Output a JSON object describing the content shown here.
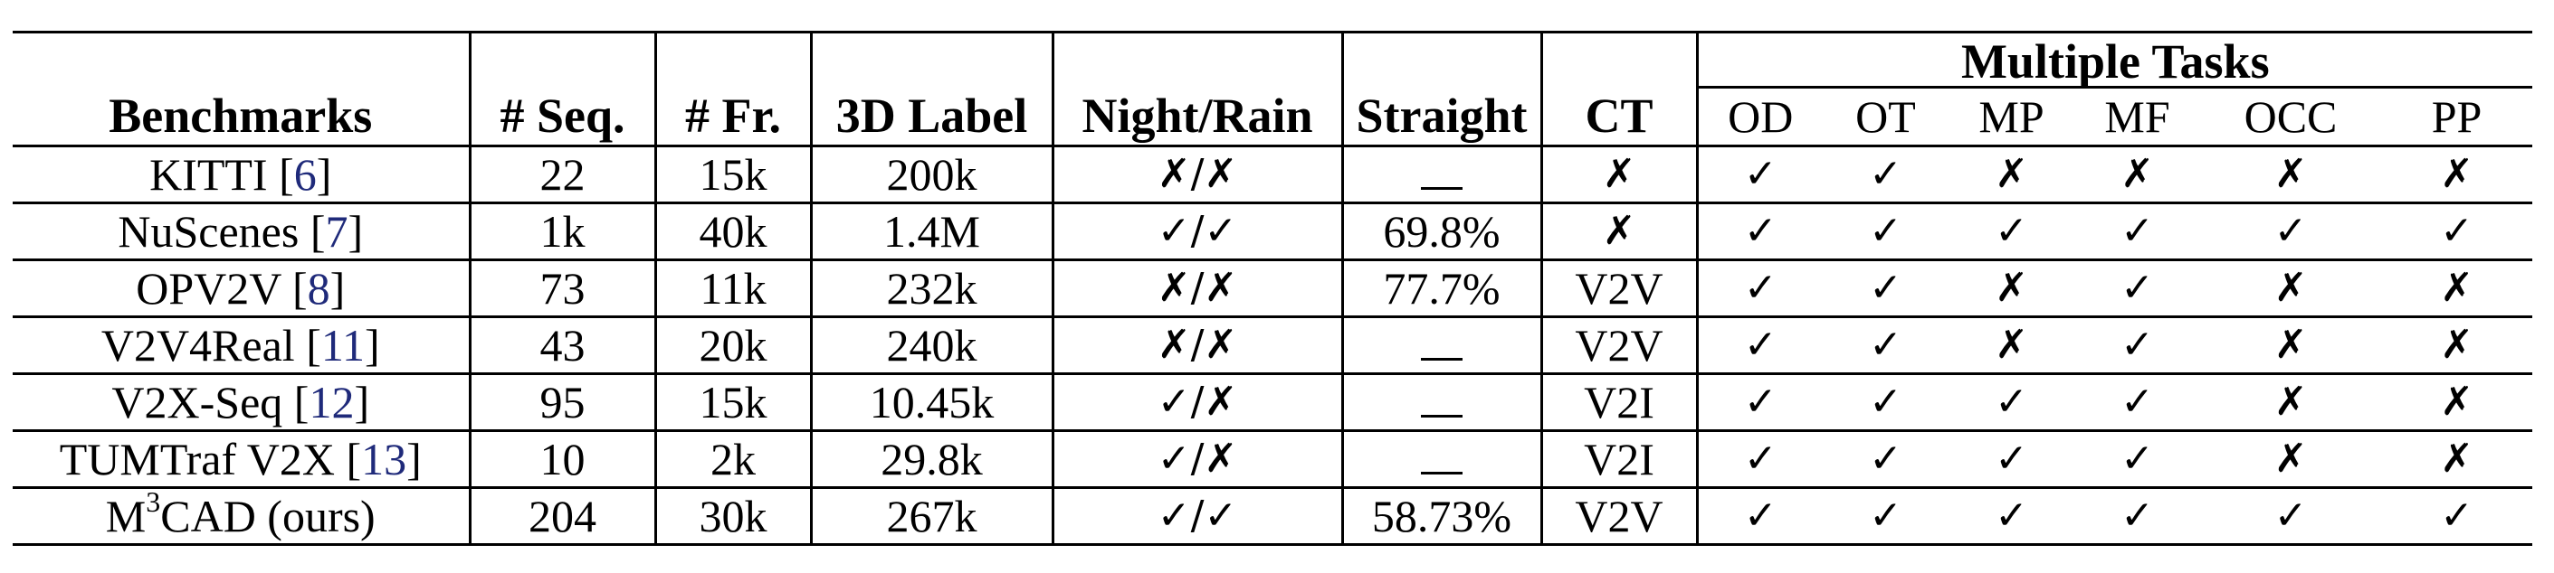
{
  "table": {
    "group_header": "Multiple Tasks",
    "headers": {
      "benchmarks": "Benchmarks",
      "seq": "# Seq.",
      "fr": "# Fr.",
      "label3d": "3D Label",
      "night_rain": "Night/Rain",
      "straight": "Straight",
      "ct": "CT",
      "od": "OD",
      "ot": "OT",
      "mp": "MP",
      "mf": "MF",
      "occ": "OCC",
      "pp": "PP"
    },
    "rows": [
      {
        "name": "KITTI",
        "ref": "6",
        "seq": "22",
        "fr": "15k",
        "label3d": "200k",
        "night": "✗",
        "rain": "✗",
        "straight": "",
        "ct": "✗",
        "od": "✓",
        "ot": "✓",
        "mp": "✗",
        "mf": "✗",
        "occ": "✗",
        "pp": "✗"
      },
      {
        "name": "NuScenes",
        "ref": "7",
        "seq": "1k",
        "fr": "40k",
        "label3d": "1.4M",
        "night": "✓",
        "rain": "✓",
        "straight": "69.8%",
        "ct": "✗",
        "od": "✓",
        "ot": "✓",
        "mp": "✓",
        "mf": "✓",
        "occ": "✓",
        "pp": "✓"
      },
      {
        "name": "OPV2V",
        "ref": "8",
        "seq": "73",
        "fr": "11k",
        "label3d": "232k",
        "night": "✗",
        "rain": "✗",
        "straight": "77.7%",
        "ct": "V2V",
        "od": "✓",
        "ot": "✓",
        "mp": "✗",
        "mf": "✓",
        "occ": "✗",
        "pp": "✗"
      },
      {
        "name": "V2V4Real",
        "ref": "11",
        "seq": "43",
        "fr": "20k",
        "label3d": "240k",
        "night": "✗",
        "rain": "✗",
        "straight": "",
        "ct": "V2V",
        "od": "✓",
        "ot": "✓",
        "mp": "✗",
        "mf": "✓",
        "occ": "✗",
        "pp": "✗"
      },
      {
        "name": "V2X-Seq",
        "ref": "12",
        "seq": "95",
        "fr": "15k",
        "label3d": "10.45k",
        "night": "✓",
        "rain": "✗",
        "straight": "",
        "ct": "V2I",
        "od": "✓",
        "ot": "✓",
        "mp": "✓",
        "mf": "✓",
        "occ": "✗",
        "pp": "✗"
      },
      {
        "name": "TUMTraf V2X",
        "ref": "13",
        "seq": "10",
        "fr": "2k",
        "label3d": "29.8k",
        "night": "✓",
        "rain": "✗",
        "straight": "",
        "ct": "V2I",
        "od": "✓",
        "ot": "✓",
        "mp": "✓",
        "mf": "✓",
        "occ": "✗",
        "pp": "✗"
      }
    ],
    "ours": {
      "name_prefix": "M",
      "name_sup": "3",
      "name_suffix": "CAD (ours)",
      "seq": "204",
      "fr": "30k",
      "label3d": "267k",
      "night": "✓",
      "rain": "✓",
      "straight": "58.73%",
      "ct": "V2V",
      "od": "✓",
      "ot": "✓",
      "mp": "✓",
      "mf": "✓",
      "occ": "✓",
      "pp": "✓"
    }
  }
}
